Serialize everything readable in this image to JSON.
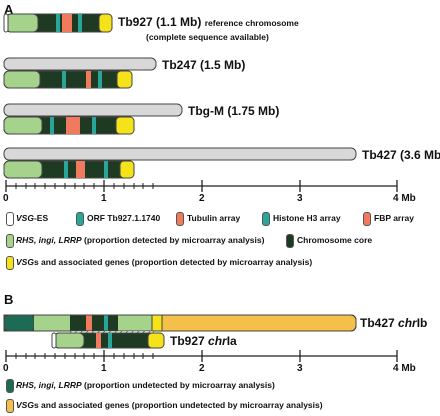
{
  "panelA": {
    "letter": "A",
    "chromosomes": [
      {
        "name": "Tb927 (1.1 Mb)",
        "note1": "reference chromosome",
        "note2": "(complete sequence available)"
      },
      {
        "name": "Tb247 (1.5 Mb)"
      },
      {
        "name": "Tbg-M (1.75 Mb)"
      },
      {
        "name": "Tb427 (3.6 Mb)"
      }
    ],
    "axis": {
      "ticks": [
        "0",
        "1",
        "2",
        "3",
        "4 Mb"
      ]
    },
    "legend": {
      "vsg_es": "VSG",
      "vsg_es_suffix": "-ES",
      "orf": "ORF Tb927.1.1740",
      "tubulin": "Tubulin array",
      "histone": "Histone H3 array",
      "fbp": "FBP array",
      "rhs_italic": "RHS, ingi, LRRP",
      "rhs_rest": " (proportion detected by microarray analysis)",
      "core": "Chromosome core",
      "vsgs_italic": "VSG",
      "vsgs_rest": "s and associated genes (proportion detected by microarray analysis)"
    }
  },
  "panelB": {
    "letter": "B",
    "chrIb": {
      "prefix": "Tb427 ",
      "italic": "chr",
      "suffix": "Ib"
    },
    "chrIa": {
      "prefix": "Tb927 ",
      "italic": "chr",
      "suffix": "Ia"
    },
    "axis": {
      "ticks": [
        "0",
        "1",
        "2",
        "3",
        "4 Mb"
      ]
    },
    "legend": {
      "rhs_italic": "RHS, ingi, LRRP",
      "rhs_rest": " (proportion undetected by microarray analysis)",
      "vsgs_italic": "VSG",
      "vsgs_rest": "s and associated genes (proportion undetected by microarray analysis)"
    }
  },
  "colors": {
    "light_green": "#a6d38c",
    "dark_core": "#1f3a22",
    "teal": "#2aa59a",
    "salmon": "#f07a5e",
    "yellow": "#f4e21a",
    "grey": "#d8d8d8",
    "orange": "#f5c04a",
    "dark_teal": "#1d6b55"
  }
}
